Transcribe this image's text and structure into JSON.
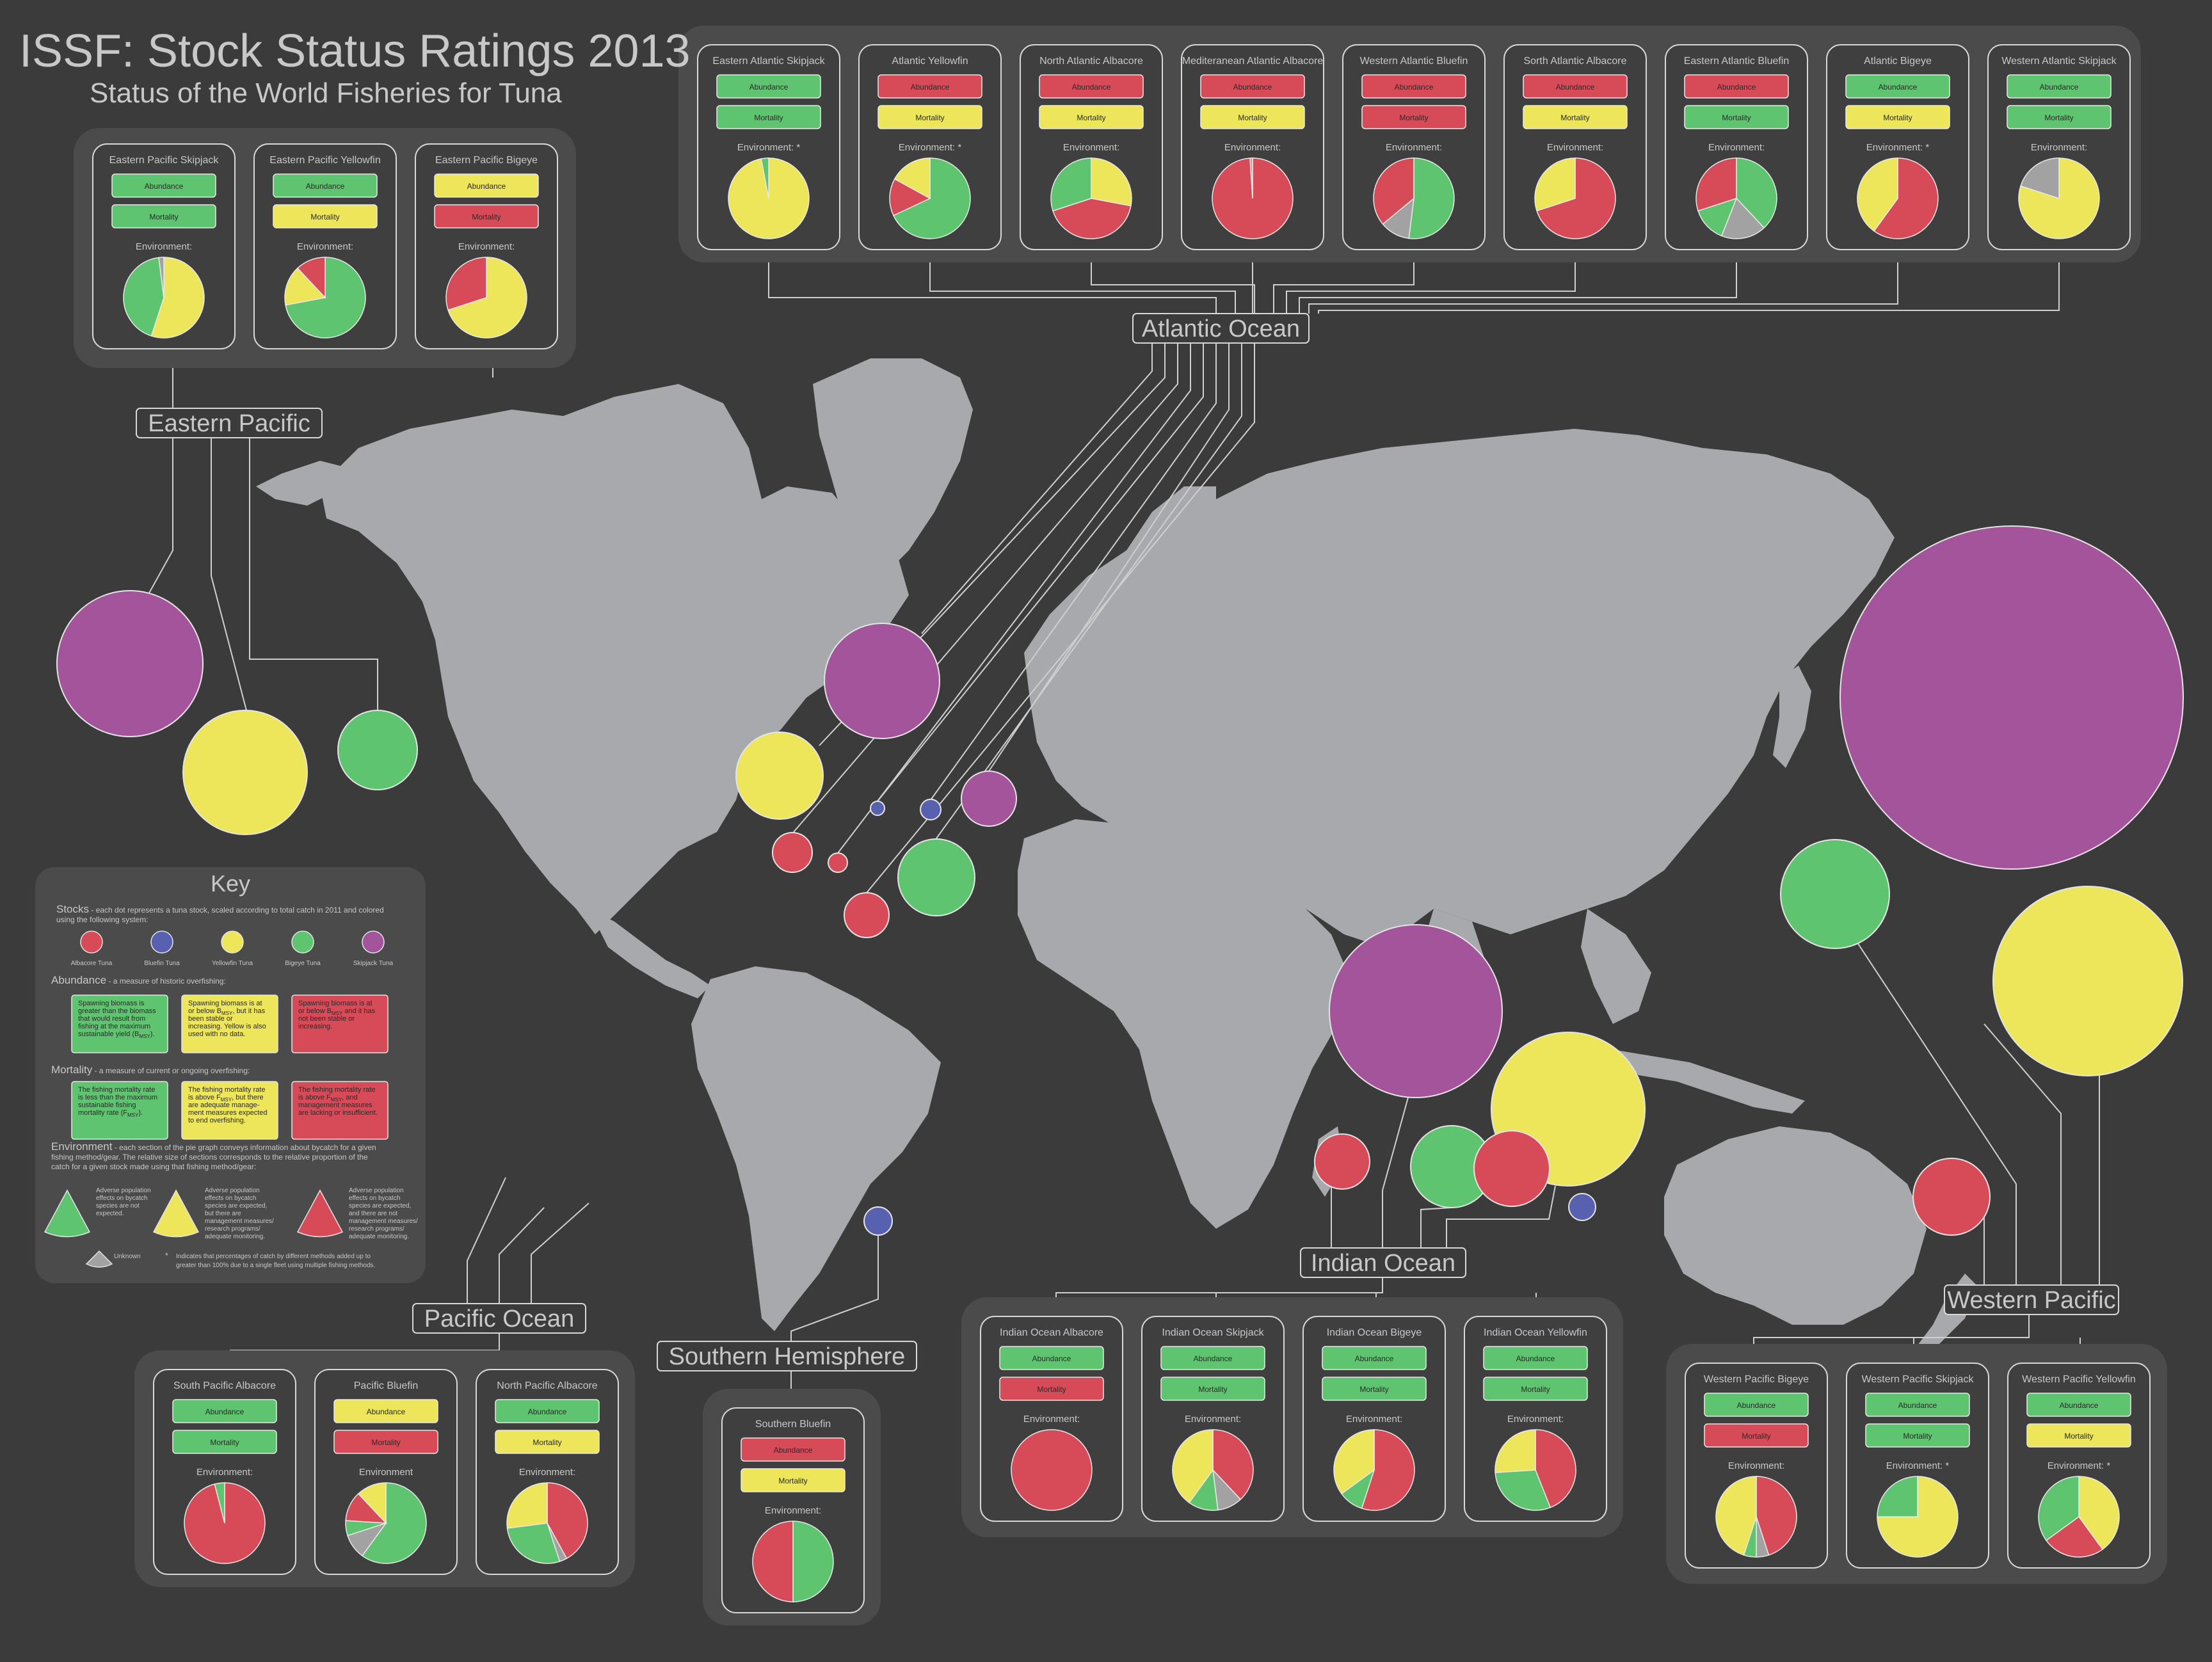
{
  "title": "ISSF: Stock Status Ratings 2013",
  "subtitle": "Status of the World Fisheries for Tuna",
  "labels": {
    "abundance": "Abundance",
    "mortality": "Mortality",
    "environment": "Environment:",
    "environment_star": "Environment: *",
    "environment_plain": "Environment"
  },
  "colors": {
    "background": "#3b3b3b",
    "panel": "#4b4b4b",
    "card": "#3f3f3f",
    "land": "#a8a9ac",
    "green": "#5ec46f",
    "yellow": "#ede55a",
    "red": "#d64b57",
    "grey": "#a2a2a2",
    "purple": "#a4549a",
    "blue": "#5860b0",
    "line": "#cfcfcf",
    "text": "#c8c8c8"
  },
  "regions": [
    {
      "name": "Eastern Pacific",
      "stocks": [
        {
          "name": "Eastern Pacific Skipjack",
          "abundance": "green",
          "mortality": "green",
          "env_label": "Environment:",
          "pie": [
            {
              "color": "yellow",
              "value": 55
            },
            {
              "color": "green",
              "value": 43
            },
            {
              "color": "grey",
              "value": 2
            }
          ]
        },
        {
          "name": "Eastern Pacific Yellowfin",
          "abundance": "green",
          "mortality": "yellow",
          "env_label": "Environment:",
          "pie": [
            {
              "color": "green",
              "value": 72
            },
            {
              "color": "yellow",
              "value": 16
            },
            {
              "color": "red",
              "value": 12
            }
          ]
        },
        {
          "name": "Eastern Pacific Bigeye",
          "abundance": "yellow",
          "mortality": "red",
          "env_label": "Environment:",
          "pie": [
            {
              "color": "yellow",
              "value": 70
            },
            {
              "color": "red",
              "value": 30
            }
          ]
        }
      ]
    },
    {
      "name": "Atlantic Ocean",
      "stocks": [
        {
          "name": "Eastern Atlantic Skipjack",
          "abundance": "green",
          "mortality": "green",
          "env_label": "Environment: *",
          "pie": [
            {
              "color": "yellow",
              "value": 97
            },
            {
              "color": "green",
              "value": 3
            }
          ]
        },
        {
          "name": "Atlantic Yellowfin",
          "abundance": "red",
          "mortality": "yellow",
          "env_label": "Environment: *",
          "pie": [
            {
              "color": "green",
              "value": 68
            },
            {
              "color": "red",
              "value": 15
            },
            {
              "color": "yellow",
              "value": 17
            }
          ]
        },
        {
          "name": "North Atlantic Albacore",
          "abundance": "red",
          "mortality": "yellow",
          "env_label": "Environment:",
          "pie": [
            {
              "color": "yellow",
              "value": 28
            },
            {
              "color": "red",
              "value": 42
            },
            {
              "color": "green",
              "value": 30
            }
          ]
        },
        {
          "name": "Mediteranean Atlantic Albacore",
          "abundance": "red",
          "mortality": "yellow",
          "env_label": "Environment:",
          "pie": [
            {
              "color": "red",
              "value": 99
            },
            {
              "color": "grey",
              "value": 1
            }
          ]
        },
        {
          "name": "Western Atlantic Bluefin",
          "abundance": "red",
          "mortality": "red",
          "env_label": "Environment:",
          "pie": [
            {
              "color": "green",
              "value": 52
            },
            {
              "color": "grey",
              "value": 12
            },
            {
              "color": "red",
              "value": 36
            }
          ]
        },
        {
          "name": "Sorth Atlantic Albacore",
          "abundance": "red",
          "mortality": "yellow",
          "env_label": "Environment:",
          "pie": [
            {
              "color": "red",
              "value": 70
            },
            {
              "color": "yellow",
              "value": 30
            }
          ]
        },
        {
          "name": "Eastern Atlantic Bluefin",
          "abundance": "red",
          "mortality": "green",
          "env_label": "Environment:",
          "pie": [
            {
              "color": "green",
              "value": 38
            },
            {
              "color": "grey",
              "value": 18
            },
            {
              "color": "green",
              "value": 14
            },
            {
              "color": "red",
              "value": 30
            }
          ]
        },
        {
          "name": "Atlantic Bigeye",
          "abundance": "green",
          "mortality": "yellow",
          "env_label": "Environment: *",
          "pie": [
            {
              "color": "red",
              "value": 60
            },
            {
              "color": "yellow",
              "value": 40
            }
          ]
        },
        {
          "name": "Western Atlantic Skipjack",
          "abundance": "green",
          "mortality": "green",
          "env_label": "Environment:",
          "pie": [
            {
              "color": "yellow",
              "value": 80
            },
            {
              "color": "grey",
              "value": 20
            }
          ]
        }
      ]
    },
    {
      "name": "Pacific Ocean",
      "stocks": [
        {
          "name": "South Pacific Albacore",
          "abundance": "green",
          "mortality": "green",
          "env_label": "Environment:",
          "pie": [
            {
              "color": "red",
              "value": 96
            },
            {
              "color": "green",
              "value": 4
            }
          ]
        },
        {
          "name": "Pacific Bluefin",
          "abundance": "yellow",
          "mortality": "red",
          "env_label": "Environment",
          "pie": [
            {
              "color": "green",
              "value": 60
            },
            {
              "color": "grey",
              "value": 10
            },
            {
              "color": "green",
              "value": 6
            },
            {
              "color": "red",
              "value": 12
            },
            {
              "color": "yellow",
              "value": 12
            }
          ]
        },
        {
          "name": "North Pacific Albacore",
          "abundance": "green",
          "mortality": "yellow",
          "env_label": "Environment:",
          "pie": [
            {
              "color": "red",
              "value": 42
            },
            {
              "color": "grey",
              "value": 3
            },
            {
              "color": "green",
              "value": 28
            },
            {
              "color": "yellow",
              "value": 27
            }
          ]
        }
      ]
    },
    {
      "name": "Southern Hemisphere",
      "stocks": [
        {
          "name": "Southern Bluefin",
          "abundance": "red",
          "mortality": "yellow",
          "env_label": "Environment:",
          "pie": [
            {
              "color": "green",
              "value": 50
            },
            {
              "color": "red",
              "value": 50
            }
          ]
        }
      ]
    },
    {
      "name": "Indian Ocean",
      "stocks": [
        {
          "name": "Indian Ocean Albacore",
          "abundance": "green",
          "mortality": "red",
          "env_label": "Environment:",
          "pie": [
            {
              "color": "red",
              "value": 100
            }
          ]
        },
        {
          "name": "Indian Ocean Skipjack",
          "abundance": "green",
          "mortality": "green",
          "env_label": "Environment:",
          "pie": [
            {
              "color": "red",
              "value": 38
            },
            {
              "color": "grey",
              "value": 10
            },
            {
              "color": "green",
              "value": 12
            },
            {
              "color": "yellow",
              "value": 40
            }
          ]
        },
        {
          "name": "Indian Ocean Bigeye",
          "abundance": "green",
          "mortality": "green",
          "env_label": "Environment:",
          "pie": [
            {
              "color": "red",
              "value": 55
            },
            {
              "color": "green",
              "value": 10
            },
            {
              "color": "yellow",
              "value": 35
            }
          ]
        },
        {
          "name": "Indian Ocean Yellowfin",
          "abundance": "green",
          "mortality": "green",
          "env_label": "Environment:",
          "pie": [
            {
              "color": "red",
              "value": 44
            },
            {
              "color": "green",
              "value": 30
            },
            {
              "color": "yellow",
              "value": 26
            }
          ]
        }
      ]
    },
    {
      "name": "Western Pacific",
      "stocks": [
        {
          "name": "Western Pacific Bigeye",
          "abundance": "green",
          "mortality": "red",
          "env_label": "Environment:",
          "pie": [
            {
              "color": "red",
              "value": 45
            },
            {
              "color": "grey",
              "value": 5
            },
            {
              "color": "green",
              "value": 5
            },
            {
              "color": "yellow",
              "value": 45
            }
          ]
        },
        {
          "name": "Western Pacific Skipjack",
          "abundance": "green",
          "mortality": "green",
          "env_label": "Environment: *",
          "pie": [
            {
              "color": "yellow",
              "value": 75
            },
            {
              "color": "green",
              "value": 25
            }
          ]
        },
        {
          "name": "Western Pacific Yellowfin",
          "abundance": "green",
          "mortality": "yellow",
          "env_label": "Environment: *",
          "pie": [
            {
              "color": "yellow",
              "value": 40
            },
            {
              "color": "red",
              "value": 25
            },
            {
              "color": "green",
              "value": 35
            }
          ]
        }
      ]
    }
  ],
  "key": {
    "title": "Key",
    "stocks_heading": "Stocks",
    "stocks_text_1": " - each dot represents a tuna stock, scaled according to total catch in 2011 and colored",
    "stocks_text_2": "using the following system:",
    "species": [
      {
        "label": "Albacore Tuna",
        "color": "red"
      },
      {
        "label": "Bluefin Tuna",
        "color": "blue"
      },
      {
        "label": "Yellowfin Tuna",
        "color": "yellow"
      },
      {
        "label": "Bigeye Tuna",
        "color": "green"
      },
      {
        "label": "Skipjack Tuna",
        "color": "purple"
      }
    ],
    "abundance_heading": "Abundance",
    "abundance_text": " - a measure of historic overfishing:",
    "abundance_boxes": [
      {
        "color": "green",
        "lines": [
          "Spawning biomass is",
          "greater than the biomass",
          "that would result from",
          "fishing at the maximum",
          "sustainable yield (B",
          "MSY",
          ")."
        ]
      },
      {
        "color": "yellow",
        "lines": [
          "Spawning biomass is at",
          "or below B",
          "MSY",
          ", but it has",
          "been stable or",
          "increasing. Yellow is also",
          "used with no data."
        ]
      },
      {
        "color": "red",
        "lines": [
          "Spawning biomass is at",
          "or below B",
          "MSY",
          " and it has",
          "not been stable or",
          "increasing."
        ]
      }
    ],
    "mortality_heading": "Mortality",
    "mortality_text": " - a measure of current or ongoing overfishing:",
    "mortality_boxes": [
      {
        "color": "green",
        "lines": [
          "The fishing mortality rate",
          "is less than the maximum",
          "sustainable fishing",
          "mortality rate (F",
          "MSY",
          ")."
        ]
      },
      {
        "color": "yellow",
        "lines": [
          "The fishing mortality rate",
          "is above F",
          "MSY",
          ", but there",
          "are adequate manage-",
          "ment measures expected",
          "to end overfishing."
        ]
      },
      {
        "color": "red",
        "lines": [
          "The fishing mortality rate",
          "is above F",
          "MSY",
          ", and",
          "management measures",
          "are lacking or insufficient."
        ]
      }
    ],
    "environment_heading": "Environment",
    "environment_text_1": " - each section of the pie graph conveys information about bycatch for a given",
    "environment_text_2": "fishing method/gear. The relative size of sections corresponds to the relative proportion of the",
    "environment_text_3": "catch for a given stock made using that fishing method/gear:",
    "env_green": [
      "Adverse population",
      "effects on bycatch",
      "species are not",
      "expected."
    ],
    "env_yellow": [
      "Adverse population",
      "effects on bycatch",
      "species are expected,",
      "but there are",
      "management measures/",
      "research programs/",
      "adequate monitoring."
    ],
    "env_red": [
      "Adverse population",
      "effects on bycatch",
      "species are expected,",
      "and there are not",
      "management measures/",
      "research programs/",
      "adequate monitoring."
    ],
    "unknown": "Unknown",
    "star_note_1": "Indicates that percentages of catch by different methods added up to",
    "star_note_2": "greater than 100% due to a single fleet using multiple fishing methods."
  },
  "dots": [
    {
      "color": "purple",
      "r": 114
    },
    {
      "color": "yellow",
      "r": 97
    },
    {
      "color": "green",
      "r": 62
    },
    {
      "color": "purple",
      "r": 90
    },
    {
      "color": "yellow",
      "r": 68
    },
    {
      "color": "red",
      "r": 31
    },
    {
      "color": "red",
      "r": 15
    },
    {
      "color": "blue",
      "r": 11
    },
    {
      "color": "blue",
      "r": 16
    },
    {
      "color": "purple",
      "r": 43
    },
    {
      "color": "green",
      "r": 60
    },
    {
      "color": "red",
      "r": 35
    },
    {
      "color": "purple",
      "r": 268
    },
    {
      "color": "green",
      "r": 85
    },
    {
      "color": "yellow",
      "r": 148
    },
    {
      "color": "purple",
      "r": 135
    },
    {
      "color": "yellow",
      "r": 120
    },
    {
      "color": "red",
      "r": 43
    },
    {
      "color": "green",
      "r": 64
    },
    {
      "color": "red",
      "r": 59
    },
    {
      "color": "blue",
      "r": 21
    },
    {
      "color": "red",
      "r": 60
    },
    {
      "color": "blue",
      "r": 22
    }
  ]
}
